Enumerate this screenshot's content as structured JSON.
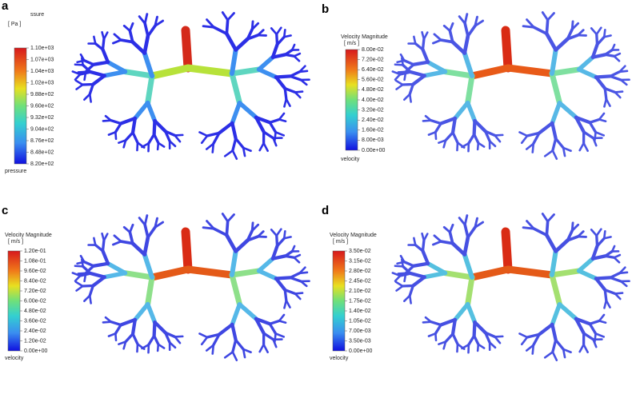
{
  "panels": [
    {
      "label": "a",
      "legend_title": "ssure",
      "unit": "[ Pa ]",
      "ticks": [
        "1.10e+03",
        "1.07e+03",
        "1.04e+03",
        "1.02e+03",
        "9.88e+02",
        "9.60e+02",
        "9.32e+02",
        "9.04e+02",
        "8.76e+02",
        "8.48e+02",
        "8.20e+02"
      ],
      "footer": "pressure"
    },
    {
      "label": "b",
      "legend_title": "Velocity Magnitude",
      "unit": "[ m/s ]",
      "ticks": [
        "8.00e-02",
        "7.20e-02",
        "6.40e-02",
        "5.60e-02",
        "4.80e-02",
        "4.00e-02",
        "3.20e-02",
        "2.40e-02",
        "1.60e-02",
        "8.00e-03",
        "0.00e+00"
      ],
      "footer": "velocity"
    },
    {
      "label": "c",
      "legend_title": "Velocity Magnitude",
      "unit": "[ m/s ]",
      "ticks": [
        "1.20e-01",
        "1.08e-01",
        "9.60e-02",
        "8.40e-02",
        "7.20e-02",
        "6.00e-02",
        "4.80e-02",
        "3.60e-02",
        "2.40e-02",
        "1.20e-02",
        "0.00e+00"
      ],
      "footer": "velocity"
    },
    {
      "label": "d",
      "legend_title": "Velocity Magnitude",
      "unit": "[ m/s ]",
      "ticks": [
        "3.50e-02",
        "3.15e-02",
        "2.80e-02",
        "2.45e-02",
        "2.10e-02",
        "1.75e-02",
        "1.40e-02",
        "1.05e-02",
        "7.00e-03",
        "3.50e-03",
        "0.00e+00"
      ],
      "footer": "velocity"
    }
  ]
}
